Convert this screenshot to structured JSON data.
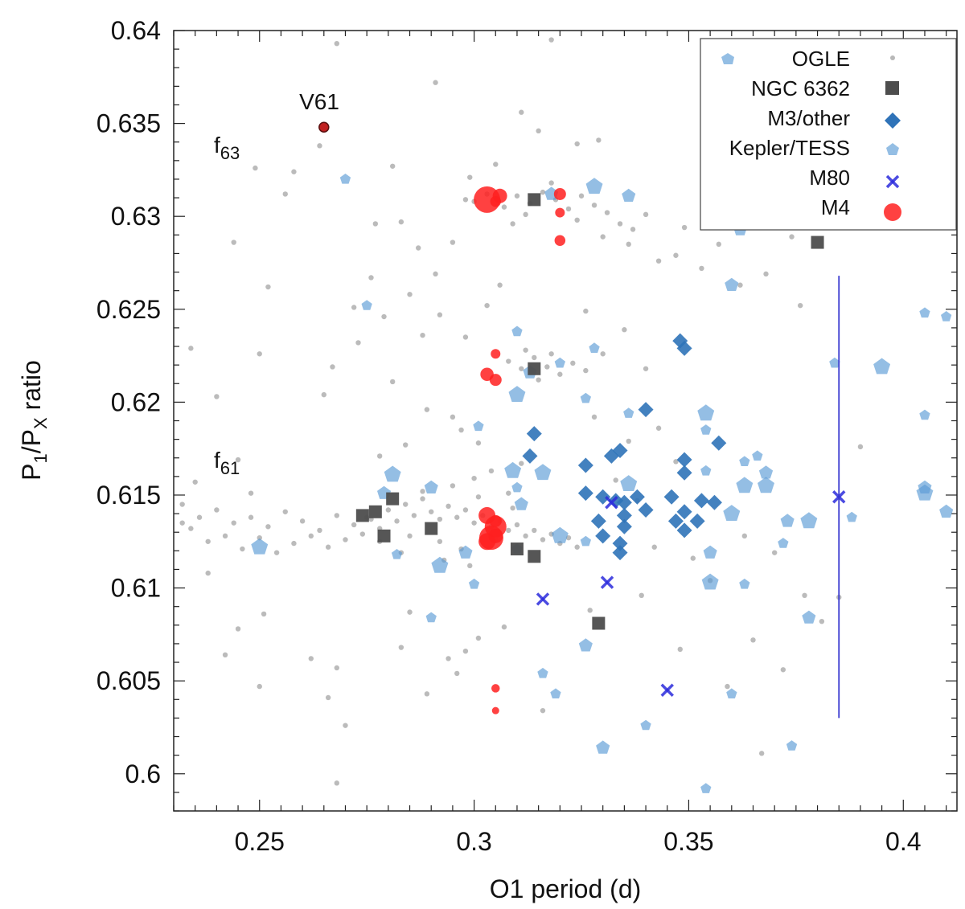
{
  "chart_data": {
    "type": "scatter",
    "xlabel": "O1 period (d)",
    "ylabel": "P1/PX ratio",
    "xlim": [
      0.23,
      0.4125
    ],
    "ylim": [
      0.598,
      0.64
    ],
    "x_ticks": [
      "0.25",
      "0.3",
      "0.35",
      "0.4"
    ],
    "y_ticks": [
      "0.6",
      "0.605",
      "0.61",
      "0.615",
      "0.62",
      "0.625",
      "0.63",
      "0.635",
      "0.64"
    ],
    "legend": {
      "position": "top-right",
      "entries": [
        {
          "key": "ogle",
          "label": "OGLE"
        },
        {
          "key": "ngc6362",
          "label": "NGC 6362"
        },
        {
          "key": "m3",
          "label": "M3/other"
        },
        {
          "key": "kepler",
          "label": "Kepler/TESS"
        },
        {
          "key": "m80",
          "label": "M80"
        },
        {
          "key": "m4",
          "label": "M4"
        }
      ]
    },
    "annotations": {
      "f63": "f",
      "f63_sub": "63",
      "f61": "f",
      "f61_sub": "61",
      "v61": "V61"
    },
    "error_bar": {
      "x": 0.385,
      "y_low": 0.603,
      "y_high": 0.6268
    },
    "series": {
      "ogle": [
        [
          0.232,
          0.6145
        ],
        [
          0.234,
          0.6132
        ],
        [
          0.236,
          0.6138
        ],
        [
          0.238,
          0.6125
        ],
        [
          0.24,
          0.6142
        ],
        [
          0.242,
          0.6128
        ],
        [
          0.244,
          0.6135
        ],
        [
          0.246,
          0.6121
        ],
        [
          0.248,
          0.6138
        ],
        [
          0.25,
          0.6127
        ],
        [
          0.252,
          0.6133
        ],
        [
          0.254,
          0.6119
        ],
        [
          0.256,
          0.6141
        ],
        [
          0.258,
          0.6124
        ],
        [
          0.26,
          0.6136
        ],
        [
          0.262,
          0.6128
        ],
        [
          0.264,
          0.6131
        ],
        [
          0.266,
          0.6122
        ],
        [
          0.268,
          0.6139
        ],
        [
          0.27,
          0.6126
        ],
        [
          0.272,
          0.6134
        ],
        [
          0.274,
          0.6129
        ],
        [
          0.276,
          0.6137
        ],
        [
          0.278,
          0.6132
        ],
        [
          0.28,
          0.6142
        ],
        [
          0.282,
          0.6136
        ],
        [
          0.284,
          0.6145
        ],
        [
          0.286,
          0.6139
        ],
        [
          0.288,
          0.6148
        ],
        [
          0.29,
          0.6141
        ],
        [
          0.292,
          0.6137
        ],
        [
          0.294,
          0.6144
        ],
        [
          0.296,
          0.6138
        ],
        [
          0.298,
          0.6142
        ],
        [
          0.3,
          0.6135
        ],
        [
          0.302,
          0.6139
        ],
        [
          0.304,
          0.6133
        ],
        [
          0.306,
          0.6136
        ],
        [
          0.308,
          0.6131
        ],
        [
          0.31,
          0.6134
        ],
        [
          0.312,
          0.6128
        ],
        [
          0.314,
          0.6131
        ],
        [
          0.316,
          0.6126
        ],
        [
          0.318,
          0.6129
        ],
        [
          0.32,
          0.6124
        ],
        [
          0.322,
          0.6127
        ],
        [
          0.324,
          0.6122
        ],
        [
          0.285,
          0.6128
        ],
        [
          0.292,
          0.6125
        ],
        [
          0.297,
          0.6121
        ],
        [
          0.288,
          0.6152
        ],
        [
          0.295,
          0.6155
        ],
        [
          0.301,
          0.6149
        ],
        [
          0.283,
          0.6119
        ],
        [
          0.293,
          0.6115
        ],
        [
          0.299,
          0.6112
        ],
        [
          0.278,
          0.6125
        ],
        [
          0.275,
          0.6138
        ],
        [
          0.305,
          0.6126
        ],
        [
          0.309,
          0.6143
        ],
        [
          0.3,
          0.6308
        ],
        [
          0.303,
          0.6312
        ],
        [
          0.307,
          0.6305
        ],
        [
          0.31,
          0.6311
        ],
        [
          0.313,
          0.6307
        ],
        [
          0.316,
          0.6313
        ],
        [
          0.319,
          0.6309
        ],
        [
          0.322,
          0.6304
        ],
        [
          0.325,
          0.6311
        ],
        [
          0.328,
          0.6306
        ],
        [
          0.331,
          0.6302
        ],
        [
          0.334,
          0.6296
        ],
        [
          0.337,
          0.6293
        ],
        [
          0.34,
          0.6301
        ],
        [
          0.312,
          0.6301
        ],
        [
          0.318,
          0.6318
        ],
        [
          0.324,
          0.6298
        ],
        [
          0.33,
          0.6289
        ],
        [
          0.336,
          0.6285
        ],
        [
          0.309,
          0.6296
        ],
        [
          0.308,
          0.6222
        ],
        [
          0.311,
          0.6218
        ],
        [
          0.314,
          0.6224
        ],
        [
          0.317,
          0.6219
        ],
        [
          0.32,
          0.6215
        ],
        [
          0.323,
          0.6221
        ],
        [
          0.326,
          0.6217
        ],
        [
          0.315,
          0.6212
        ],
        [
          0.312,
          0.6228
        ],
        [
          0.318,
          0.6226
        ],
        [
          0.268,
          0.6393
        ],
        [
          0.291,
          0.6372
        ],
        [
          0.318,
          0.6395
        ],
        [
          0.311,
          0.6356
        ],
        [
          0.264,
          0.6338
        ],
        [
          0.258,
          0.6324
        ],
        [
          0.249,
          0.6326
        ],
        [
          0.281,
          0.6327
        ],
        [
          0.256,
          0.6312
        ],
        [
          0.277,
          0.6296
        ],
        [
          0.244,
          0.6286
        ],
        [
          0.252,
          0.6262
        ],
        [
          0.234,
          0.6229
        ],
        [
          0.25,
          0.6226
        ],
        [
          0.267,
          0.6219
        ],
        [
          0.265,
          0.6204
        ],
        [
          0.24,
          0.6203
        ],
        [
          0.245,
          0.6169
        ],
        [
          0.235,
          0.6157
        ],
        [
          0.248,
          0.6151
        ],
        [
          0.232,
          0.6135
        ],
        [
          0.238,
          0.6108
        ],
        [
          0.251,
          0.6086
        ],
        [
          0.245,
          0.6078
        ],
        [
          0.242,
          0.6064
        ],
        [
          0.262,
          0.6062
        ],
        [
          0.268,
          0.6057
        ],
        [
          0.25,
          0.6047
        ],
        [
          0.266,
          0.6041
        ],
        [
          0.27,
          0.6026
        ],
        [
          0.268,
          0.5995
        ],
        [
          0.289,
          0.6043
        ],
        [
          0.294,
          0.6062
        ],
        [
          0.301,
          0.6073
        ],
        [
          0.285,
          0.6087
        ],
        [
          0.298,
          0.6066
        ],
        [
          0.307,
          0.6079
        ],
        [
          0.296,
          0.6054
        ],
        [
          0.283,
          0.6068
        ],
        [
          0.316,
          0.6034
        ],
        [
          0.327,
          0.6088
        ],
        [
          0.339,
          0.6096
        ],
        [
          0.342,
          0.6122
        ],
        [
          0.351,
          0.6116
        ],
        [
          0.355,
          0.6104
        ],
        [
          0.363,
          0.6128
        ],
        [
          0.37,
          0.6119
        ],
        [
          0.377,
          0.6096
        ],
        [
          0.381,
          0.6082
        ],
        [
          0.385,
          0.6095
        ],
        [
          0.365,
          0.6072
        ],
        [
          0.348,
          0.6067
        ],
        [
          0.359,
          0.6047
        ],
        [
          0.372,
          0.6056
        ],
        [
          0.367,
          0.6011
        ],
        [
          0.39,
          0.6176
        ],
        [
          0.376,
          0.6252
        ],
        [
          0.362,
          0.6263
        ],
        [
          0.353,
          0.6272
        ],
        [
          0.347,
          0.6279
        ],
        [
          0.368,
          0.6269
        ],
        [
          0.374,
          0.6289
        ],
        [
          0.363,
          0.6298
        ],
        [
          0.355,
          0.6311
        ],
        [
          0.349,
          0.6294
        ],
        [
          0.343,
          0.6276
        ],
        [
          0.357,
          0.6285
        ],
        [
          0.371,
          0.6305
        ],
        [
          0.359,
          0.6331
        ],
        [
          0.329,
          0.6341
        ],
        [
          0.324,
          0.6339
        ],
        [
          0.315,
          0.6346
        ],
        [
          0.305,
          0.6328
        ],
        [
          0.299,
          0.6321
        ],
        [
          0.306,
          0.6263
        ],
        [
          0.303,
          0.6252
        ],
        [
          0.298,
          0.6235
        ],
        [
          0.292,
          0.6247
        ],
        [
          0.288,
          0.6236
        ],
        [
          0.281,
          0.6211
        ],
        [
          0.295,
          0.6192
        ],
        [
          0.301,
          0.6178
        ],
        [
          0.297,
          0.6185
        ],
        [
          0.284,
          0.6177
        ],
        [
          0.289,
          0.6196
        ],
        [
          0.278,
          0.6171
        ],
        [
          0.3,
          0.6159
        ],
        [
          0.304,
          0.6163
        ],
        [
          0.308,
          0.6151
        ],
        [
          0.311,
          0.6167
        ],
        [
          0.326,
          0.6249
        ],
        [
          0.33,
          0.6226
        ],
        [
          0.335,
          0.6239
        ],
        [
          0.34,
          0.6218
        ],
        [
          0.328,
          0.6192
        ],
        [
          0.336,
          0.6179
        ],
        [
          0.343,
          0.6186
        ],
        [
          0.347,
          0.6168
        ],
        [
          0.333,
          0.6158
        ],
        [
          0.338,
          0.6147
        ],
        [
          0.273,
          0.6232
        ],
        [
          0.279,
          0.6246
        ],
        [
          0.285,
          0.6258
        ],
        [
          0.291,
          0.6269
        ],
        [
          0.287,
          0.6283
        ],
        [
          0.283,
          0.6297
        ],
        [
          0.298,
          0.6309
        ],
        [
          0.295,
          0.6286
        ],
        [
          0.276,
          0.6267
        ],
        [
          0.272,
          0.6251
        ]
      ],
      "ngc6362": [
        [
          0.274,
          0.6139
        ],
        [
          0.277,
          0.6141
        ],
        [
          0.281,
          0.6148
        ],
        [
          0.279,
          0.6128
        ],
        [
          0.29,
          0.6132
        ],
        [
          0.31,
          0.6121
        ],
        [
          0.314,
          0.6117
        ],
        [
          0.314,
          0.6218
        ],
        [
          0.314,
          0.6309
        ],
        [
          0.329,
          0.6081
        ],
        [
          0.38,
          0.6286
        ]
      ],
      "m3": [
        [
          0.314,
          0.6183
        ],
        [
          0.313,
          0.6171
        ],
        [
          0.326,
          0.6166
        ],
        [
          0.326,
          0.6151
        ],
        [
          0.329,
          0.6136
        ],
        [
          0.33,
          0.6128
        ],
        [
          0.33,
          0.6149
        ],
        [
          0.332,
          0.6171
        ],
        [
          0.334,
          0.6174
        ],
        [
          0.333,
          0.6147
        ],
        [
          0.335,
          0.6139
        ],
        [
          0.334,
          0.6124
        ],
        [
          0.335,
          0.6133
        ],
        [
          0.334,
          0.6119
        ],
        [
          0.335,
          0.6146
        ],
        [
          0.338,
          0.6149
        ],
        [
          0.34,
          0.6196
        ],
        [
          0.34,
          0.6142
        ],
        [
          0.346,
          0.6149
        ],
        [
          0.347,
          0.6136
        ],
        [
          0.348,
          0.6233
        ],
        [
          0.349,
          0.6229
        ],
        [
          0.349,
          0.6169
        ],
        [
          0.349,
          0.6162
        ],
        [
          0.349,
          0.6141
        ],
        [
          0.349,
          0.6131
        ],
        [
          0.352,
          0.6136
        ],
        [
          0.353,
          0.6147
        ],
        [
          0.356,
          0.6146
        ],
        [
          0.357,
          0.6178
        ]
      ],
      "kepler": [
        [
          0.25,
          0.6122
        ],
        [
          0.27,
          0.632
        ],
        [
          0.275,
          0.6252
        ],
        [
          0.279,
          0.6151
        ],
        [
          0.281,
          0.6161
        ],
        [
          0.282,
          0.6118
        ],
        [
          0.29,
          0.6154
        ],
        [
          0.29,
          0.6084
        ],
        [
          0.292,
          0.6112
        ],
        [
          0.298,
          0.6119
        ],
        [
          0.3,
          0.6102
        ],
        [
          0.301,
          0.6187
        ],
        [
          0.309,
          0.6163
        ],
        [
          0.31,
          0.6154
        ],
        [
          0.31,
          0.6238
        ],
        [
          0.311,
          0.6145
        ],
        [
          0.31,
          0.6204
        ],
        [
          0.31,
          0.6121
        ],
        [
          0.313,
          0.6216
        ],
        [
          0.316,
          0.6054
        ],
        [
          0.316,
          0.6162
        ],
        [
          0.318,
          0.6312
        ],
        [
          0.319,
          0.6043
        ],
        [
          0.32,
          0.6221
        ],
        [
          0.32,
          0.6128
        ],
        [
          0.326,
          0.6202
        ],
        [
          0.326,
          0.6125
        ],
        [
          0.326,
          0.6069
        ],
        [
          0.328,
          0.6316
        ],
        [
          0.328,
          0.6229
        ],
        [
          0.33,
          0.6014
        ],
        [
          0.336,
          0.6194
        ],
        [
          0.336,
          0.6156
        ],
        [
          0.336,
          0.6311
        ],
        [
          0.34,
          0.6026
        ],
        [
          0.354,
          0.5992
        ],
        [
          0.354,
          0.6194
        ],
        [
          0.354,
          0.6185
        ],
        [
          0.354,
          0.6163
        ],
        [
          0.355,
          0.6119
        ],
        [
          0.355,
          0.6103
        ],
        [
          0.356,
          0.6304
        ],
        [
          0.36,
          0.6263
        ],
        [
          0.36,
          0.6043
        ],
        [
          0.36,
          0.614
        ],
        [
          0.362,
          0.6293
        ],
        [
          0.363,
          0.6102
        ],
        [
          0.363,
          0.6168
        ],
        [
          0.363,
          0.6155
        ],
        [
          0.366,
          0.6299
        ],
        [
          0.366,
          0.6171
        ],
        [
          0.368,
          0.6162
        ],
        [
          0.368,
          0.6155
        ],
        [
          0.372,
          0.6124
        ],
        [
          0.373,
          0.6136
        ],
        [
          0.374,
          0.6015
        ],
        [
          0.378,
          0.6136
        ],
        [
          0.378,
          0.6084
        ],
        [
          0.384,
          0.6221
        ],
        [
          0.388,
          0.6138
        ],
        [
          0.395,
          0.6219
        ],
        [
          0.405,
          0.6248
        ],
        [
          0.405,
          0.6193
        ],
        [
          0.405,
          0.6154
        ],
        [
          0.405,
          0.6151
        ],
        [
          0.41,
          0.6246
        ],
        [
          0.41,
          0.6141
        ]
      ],
      "m80": [
        [
          0.316,
          0.6094
        ],
        [
          0.331,
          0.6103
        ],
        [
          0.332,
          0.6146
        ],
        [
          0.345,
          0.6045
        ],
        [
          0.385,
          0.6149
        ]
      ],
      "m4": [
        [
          0.303,
          0.6309
        ],
        [
          0.306,
          0.6311
        ],
        [
          0.305,
          0.6308
        ],
        [
          0.32,
          0.6312
        ],
        [
          0.32,
          0.6302
        ],
        [
          0.32,
          0.6287
        ],
        [
          0.305,
          0.6226
        ],
        [
          0.303,
          0.6215
        ],
        [
          0.305,
          0.6212
        ],
        [
          0.303,
          0.6139
        ],
        [
          0.305,
          0.6136
        ],
        [
          0.305,
          0.6133
        ],
        [
          0.305,
          0.6128
        ],
        [
          0.303,
          0.6125
        ],
        [
          0.304,
          0.6127
        ],
        [
          0.305,
          0.6046
        ],
        [
          0.305,
          0.6034
        ]
      ],
      "m4_sizes": [
        22,
        12,
        9,
        10,
        8,
        9,
        8,
        11,
        10,
        14,
        10,
        18,
        12,
        14,
        20,
        7,
        6
      ],
      "v61": [
        0.265,
        0.6348
      ]
    }
  }
}
